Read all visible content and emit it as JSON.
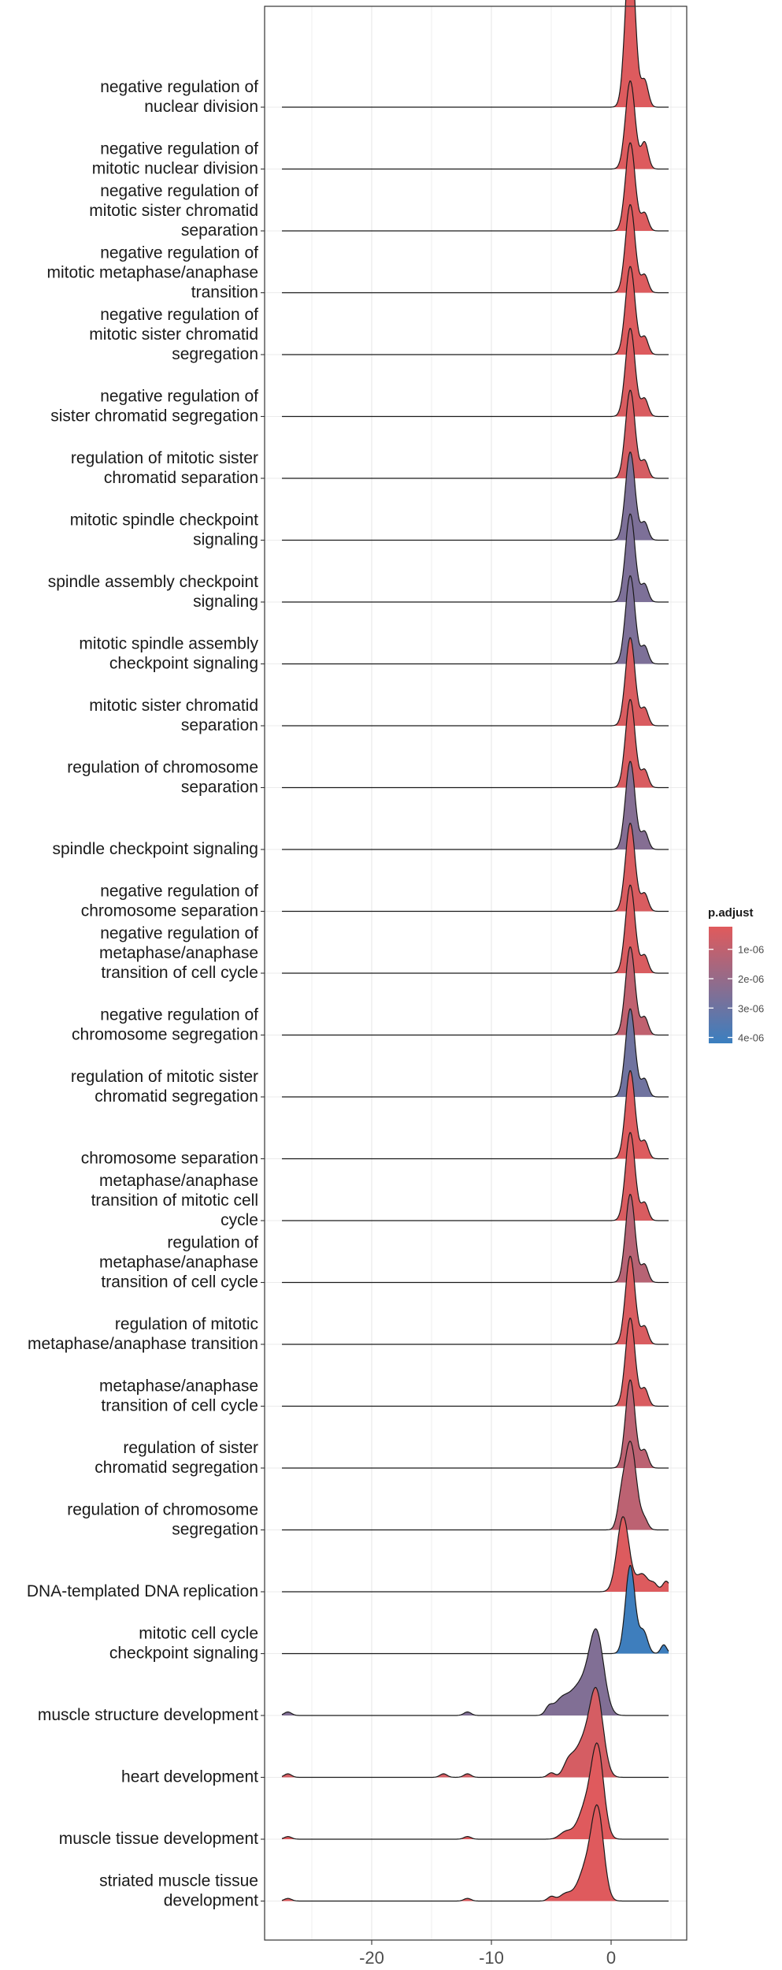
{
  "chart_data": {
    "type": "ridgeline",
    "xlabel": "",
    "ylabel": "",
    "xlim": [
      -29.5,
      5.8
    ],
    "x_ticks": [
      -20,
      -10,
      0
    ],
    "x_tick_labels": [
      "-20",
      "-10",
      "0"
    ],
    "grid": true,
    "legend": {
      "title": "p.adjust",
      "position": "right",
      "range": [
        2.3e-07,
        4.2e-06
      ],
      "ticks": [
        1e-06,
        2e-06,
        3e-06,
        4e-06
      ],
      "tick_labels": [
        "1e-06",
        "2e-06",
        "3e-06",
        "4e-06"
      ],
      "low_color": "#E05A5C",
      "high_color": "#3A7FC0"
    },
    "series": [
      {
        "label": "negative regulation of\nnuclear division",
        "p_adjust": 3e-07,
        "peaks": [
          {
            "x": 1.6,
            "h": 1.9,
            "w": 0.4
          },
          {
            "x": 2.8,
            "h": 0.3,
            "w": 0.3
          }
        ],
        "x_range": [
          -27.5,
          4.8
        ]
      },
      {
        "label": "negative regulation of\nmitotic nuclear division",
        "p_adjust": 3e-07,
        "peaks": [
          {
            "x": 1.6,
            "h": 1.0,
            "w": 0.4
          },
          {
            "x": 2.8,
            "h": 0.3,
            "w": 0.3
          }
        ],
        "x_range": [
          -27.5,
          4.8
        ]
      },
      {
        "label": "negative regulation of\nmitotic sister chromatid\nseparation",
        "p_adjust": 3e-07,
        "peaks": [
          {
            "x": 1.6,
            "h": 1.0,
            "w": 0.4
          },
          {
            "x": 2.8,
            "h": 0.2,
            "w": 0.3
          }
        ],
        "x_range": [
          -27.5,
          4.8
        ]
      },
      {
        "label": "negative regulation of\nmitotic metaphase/anaphase\ntransition",
        "p_adjust": 3e-07,
        "peaks": [
          {
            "x": 1.6,
            "h": 1.0,
            "w": 0.4
          },
          {
            "x": 2.8,
            "h": 0.2,
            "w": 0.3
          }
        ],
        "x_range": [
          -27.5,
          4.8
        ]
      },
      {
        "label": "negative regulation of\nmitotic sister chromatid\nsegregation",
        "p_adjust": 3e-07,
        "peaks": [
          {
            "x": 1.6,
            "h": 1.0,
            "w": 0.4
          },
          {
            "x": 2.8,
            "h": 0.2,
            "w": 0.3
          }
        ],
        "x_range": [
          -27.5,
          4.8
        ]
      },
      {
        "label": "negative regulation of\nsister chromatid segregation",
        "p_adjust": 4e-07,
        "peaks": [
          {
            "x": 1.6,
            "h": 1.0,
            "w": 0.4
          },
          {
            "x": 2.8,
            "h": 0.2,
            "w": 0.3
          }
        ],
        "x_range": [
          -27.5,
          4.8
        ]
      },
      {
        "label": "regulation of mitotic sister\nchromatid separation",
        "p_adjust": 5e-07,
        "peaks": [
          {
            "x": 1.6,
            "h": 1.0,
            "w": 0.4
          },
          {
            "x": 2.8,
            "h": 0.2,
            "w": 0.3
          }
        ],
        "x_range": [
          -27.5,
          4.8
        ]
      },
      {
        "label": "mitotic spindle checkpoint\nsignaling",
        "p_adjust": 2.6e-06,
        "peaks": [
          {
            "x": 1.6,
            "h": 1.0,
            "w": 0.4
          },
          {
            "x": 2.8,
            "h": 0.2,
            "w": 0.3
          }
        ],
        "x_range": [
          -27.5,
          4.8
        ]
      },
      {
        "label": "spindle assembly checkpoint\nsignaling",
        "p_adjust": 2.6e-06,
        "peaks": [
          {
            "x": 1.6,
            "h": 1.0,
            "w": 0.4
          },
          {
            "x": 2.8,
            "h": 0.2,
            "w": 0.3
          }
        ],
        "x_range": [
          -27.5,
          4.8
        ]
      },
      {
        "label": "mitotic spindle assembly\ncheckpoint signaling",
        "p_adjust": 2.6e-06,
        "peaks": [
          {
            "x": 1.6,
            "h": 1.0,
            "w": 0.4
          },
          {
            "x": 2.8,
            "h": 0.2,
            "w": 0.3
          }
        ],
        "x_range": [
          -27.5,
          4.8
        ]
      },
      {
        "label": "mitotic sister chromatid\nseparation",
        "p_adjust": 4e-07,
        "peaks": [
          {
            "x": 1.6,
            "h": 1.0,
            "w": 0.4
          },
          {
            "x": 2.8,
            "h": 0.2,
            "w": 0.3
          }
        ],
        "x_range": [
          -27.5,
          4.8
        ]
      },
      {
        "label": "regulation of chromosome\nseparation",
        "p_adjust": 4e-07,
        "peaks": [
          {
            "x": 1.6,
            "h": 1.0,
            "w": 0.4
          },
          {
            "x": 2.8,
            "h": 0.2,
            "w": 0.3
          }
        ],
        "x_range": [
          -27.5,
          4.8
        ]
      },
      {
        "label": "spindle checkpoint signaling",
        "p_adjust": 2.4e-06,
        "peaks": [
          {
            "x": 1.6,
            "h": 1.0,
            "w": 0.4
          },
          {
            "x": 2.8,
            "h": 0.2,
            "w": 0.3
          }
        ],
        "x_range": [
          -27.5,
          4.8
        ]
      },
      {
        "label": "negative regulation of\nchromosome separation",
        "p_adjust": 4e-07,
        "peaks": [
          {
            "x": 1.6,
            "h": 1.0,
            "w": 0.4
          },
          {
            "x": 2.8,
            "h": 0.2,
            "w": 0.3
          }
        ],
        "x_range": [
          -27.5,
          4.8
        ]
      },
      {
        "label": "negative regulation of\nmetaphase/anaphase\ntransition of cell cycle",
        "p_adjust": 4e-07,
        "peaks": [
          {
            "x": 1.6,
            "h": 1.0,
            "w": 0.4
          },
          {
            "x": 2.8,
            "h": 0.2,
            "w": 0.3
          }
        ],
        "x_range": [
          -27.5,
          4.8
        ]
      },
      {
        "label": "negative regulation of\nchromosome segregation",
        "p_adjust": 1e-06,
        "peaks": [
          {
            "x": 1.6,
            "h": 1.0,
            "w": 0.4
          },
          {
            "x": 2.8,
            "h": 0.2,
            "w": 0.3
          }
        ],
        "x_range": [
          -27.5,
          4.8
        ]
      },
      {
        "label": "regulation of mitotic sister\nchromatid segregation",
        "p_adjust": 2.9e-06,
        "peaks": [
          {
            "x": 1.6,
            "h": 1.0,
            "w": 0.4
          },
          {
            "x": 2.8,
            "h": 0.2,
            "w": 0.3
          }
        ],
        "x_range": [
          -27.5,
          4.8
        ]
      },
      {
        "label": "chromosome separation",
        "p_adjust": 3e-07,
        "peaks": [
          {
            "x": 1.6,
            "h": 1.0,
            "w": 0.4
          },
          {
            "x": 2.8,
            "h": 0.2,
            "w": 0.3
          }
        ],
        "x_range": [
          -27.5,
          4.8
        ]
      },
      {
        "label": "metaphase/anaphase\ntransition of mitotic cell\ncycle",
        "p_adjust": 4e-07,
        "peaks": [
          {
            "x": 1.6,
            "h": 1.0,
            "w": 0.4
          },
          {
            "x": 2.8,
            "h": 0.2,
            "w": 0.3
          }
        ],
        "x_range": [
          -27.5,
          4.8
        ]
      },
      {
        "label": "regulation of\nmetaphase/anaphase\ntransition of cell cycle",
        "p_adjust": 1.2e-06,
        "peaks": [
          {
            "x": 1.6,
            "h": 1.0,
            "w": 0.4
          },
          {
            "x": 2.8,
            "h": 0.2,
            "w": 0.3
          }
        ],
        "x_range": [
          -27.5,
          4.8
        ]
      },
      {
        "label": "regulation of mitotic\nmetaphase/anaphase transition",
        "p_adjust": 4e-07,
        "peaks": [
          {
            "x": 1.6,
            "h": 1.0,
            "w": 0.4
          },
          {
            "x": 2.8,
            "h": 0.2,
            "w": 0.3
          }
        ],
        "x_range": [
          -27.5,
          4.8
        ]
      },
      {
        "label": "metaphase/anaphase\ntransition of cell cycle",
        "p_adjust": 4e-07,
        "peaks": [
          {
            "x": 1.6,
            "h": 1.0,
            "w": 0.4
          },
          {
            "x": 2.8,
            "h": 0.2,
            "w": 0.3
          }
        ],
        "x_range": [
          -27.5,
          4.8
        ]
      },
      {
        "label": "regulation of sister\nchromatid segregation",
        "p_adjust": 1.1e-06,
        "peaks": [
          {
            "x": 1.6,
            "h": 1.0,
            "w": 0.4
          },
          {
            "x": 2.8,
            "h": 0.2,
            "w": 0.3
          }
        ],
        "x_range": [
          -27.5,
          4.8
        ]
      },
      {
        "label": "regulation of chromosome\nsegregation",
        "p_adjust": 1.1e-06,
        "peaks": [
          {
            "x": 1.6,
            "h": 1.0,
            "w": 0.5
          },
          {
            "x": 0.8,
            "h": 0.2,
            "w": 0.3
          },
          {
            "x": 2.8,
            "h": 0.1,
            "w": 0.3
          }
        ],
        "x_range": [
          -27.5,
          4.8
        ]
      },
      {
        "label": "DNA-templated DNA replication",
        "p_adjust": 3e-07,
        "peaks": [
          {
            "x": 1.0,
            "h": 0.85,
            "w": 0.5
          },
          {
            "x": 2.6,
            "h": 0.2,
            "w": 0.5
          },
          {
            "x": 3.6,
            "h": 0.08,
            "w": 0.3
          },
          {
            "x": 4.6,
            "h": 0.12,
            "w": 0.3
          }
        ],
        "x_range": [
          -27.5,
          4.8
        ]
      },
      {
        "label": "mitotic cell cycle\ncheckpoint signaling",
        "p_adjust": 4.1e-06,
        "peaks": [
          {
            "x": 1.6,
            "h": 1.0,
            "w": 0.4
          },
          {
            "x": 2.7,
            "h": 0.25,
            "w": 0.35
          },
          {
            "x": 4.4,
            "h": 0.1,
            "w": 0.25
          }
        ],
        "x_range": [
          -27.5,
          4.8
        ]
      },
      {
        "label": "muscle structure development",
        "p_adjust": 2.5e-06,
        "peaks": [
          {
            "x": -1.2,
            "h": 0.85,
            "w": 0.6
          },
          {
            "x": -2.5,
            "h": 0.35,
            "w": 0.9
          },
          {
            "x": -4.2,
            "h": 0.15,
            "w": 0.6
          },
          {
            "x": -5.2,
            "h": 0.08,
            "w": 0.3
          },
          {
            "x": -12,
            "h": 0.04,
            "w": 0.3
          },
          {
            "x": -27,
            "h": 0.04,
            "w": 0.3
          }
        ],
        "x_range": [
          -27.5,
          4.8
        ]
      },
      {
        "label": "heart development",
        "p_adjust": 5e-07,
        "peaks": [
          {
            "x": -1.2,
            "h": 0.85,
            "w": 0.55
          },
          {
            "x": -2.3,
            "h": 0.4,
            "w": 0.8
          },
          {
            "x": -3.6,
            "h": 0.12,
            "w": 0.4
          },
          {
            "x": -5,
            "h": 0.05,
            "w": 0.3
          },
          {
            "x": -12,
            "h": 0.04,
            "w": 0.3
          },
          {
            "x": -14,
            "h": 0.04,
            "w": 0.3
          },
          {
            "x": -27,
            "h": 0.04,
            "w": 0.3
          }
        ],
        "x_range": [
          -27.5,
          4.8
        ]
      },
      {
        "label": "muscle tissue development",
        "p_adjust": 2.5e-07,
        "peaks": [
          {
            "x": -1.1,
            "h": 0.9,
            "w": 0.5
          },
          {
            "x": -2.0,
            "h": 0.4,
            "w": 0.7
          },
          {
            "x": -3.8,
            "h": 0.08,
            "w": 0.5
          },
          {
            "x": -12,
            "h": 0.03,
            "w": 0.3
          },
          {
            "x": -27,
            "h": 0.03,
            "w": 0.3
          }
        ],
        "x_range": [
          -27.5,
          4.8
        ]
      },
      {
        "label": "striated muscle tissue\ndevelopment",
        "p_adjust": 2.5e-07,
        "peaks": [
          {
            "x": -1.1,
            "h": 0.9,
            "w": 0.5
          },
          {
            "x": -2.0,
            "h": 0.4,
            "w": 0.7
          },
          {
            "x": -3.8,
            "h": 0.08,
            "w": 0.5
          },
          {
            "x": -5,
            "h": 0.05,
            "w": 0.3
          },
          {
            "x": -12,
            "h": 0.03,
            "w": 0.3
          },
          {
            "x": -27,
            "h": 0.03,
            "w": 0.3
          }
        ],
        "x_range": [
          -27.5,
          4.8
        ]
      }
    ]
  }
}
